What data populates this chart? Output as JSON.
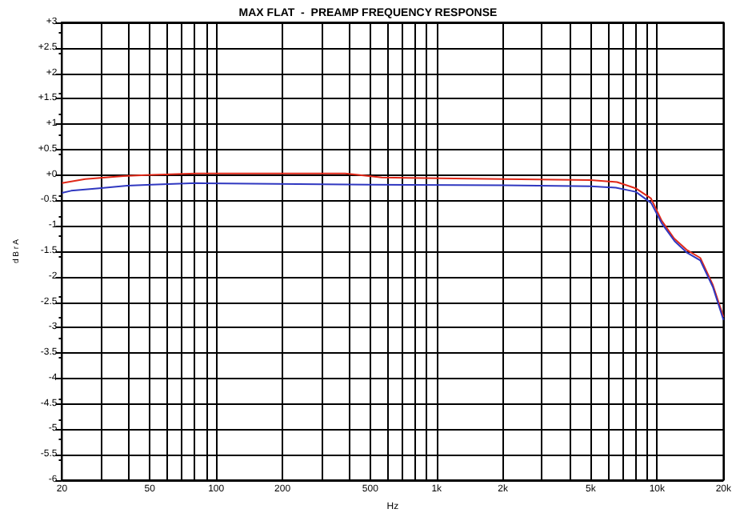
{
  "chart_data": {
    "type": "line",
    "title": "MAX FLAT  -  PREAMP FREQUENCY RESPONSE",
    "xlabel": "Hz",
    "ylabel": "d B r A",
    "log": "x",
    "grid": true,
    "marker": "none",
    "line_style": "solid",
    "xlim": [
      20,
      20000
    ],
    "ylim": [
      -6,
      3
    ],
    "xticks": [
      {
        "value": 20,
        "label": "20"
      },
      {
        "value": 30,
        "label": null
      },
      {
        "value": 40,
        "label": null
      },
      {
        "value": 50,
        "label": "50"
      },
      {
        "value": 60,
        "label": null
      },
      {
        "value": 70,
        "label": null
      },
      {
        "value": 80,
        "label": null
      },
      {
        "value": 90,
        "label": null
      },
      {
        "value": 100,
        "label": "100"
      },
      {
        "value": 200,
        "label": "200"
      },
      {
        "value": 300,
        "label": null
      },
      {
        "value": 400,
        "label": null
      },
      {
        "value": 500,
        "label": "500"
      },
      {
        "value": 600,
        "label": null
      },
      {
        "value": 700,
        "label": null
      },
      {
        "value": 800,
        "label": null
      },
      {
        "value": 900,
        "label": null
      },
      {
        "value": 1000,
        "label": "1k"
      },
      {
        "value": 2000,
        "label": "2k"
      },
      {
        "value": 3000,
        "label": null
      },
      {
        "value": 4000,
        "label": null
      },
      {
        "value": 5000,
        "label": "5k"
      },
      {
        "value": 6000,
        "label": null
      },
      {
        "value": 7000,
        "label": null
      },
      {
        "value": 8000,
        "label": null
      },
      {
        "value": 9000,
        "label": null
      },
      {
        "value": 10000,
        "label": "10k"
      },
      {
        "value": 20000,
        "label": "20k"
      }
    ],
    "yticks": [
      {
        "value": 3,
        "label": "+3"
      },
      {
        "value": 2.5,
        "label": "+2.5"
      },
      {
        "value": 2,
        "label": "+2"
      },
      {
        "value": 1.5,
        "label": "+1.5"
      },
      {
        "value": 1,
        "label": "+1"
      },
      {
        "value": 0.5,
        "label": "+0.5"
      },
      {
        "value": 0,
        "label": "+0"
      },
      {
        "value": -0.5,
        "label": "-0.5"
      },
      {
        "value": -1,
        "label": "-1"
      },
      {
        "value": -1.5,
        "label": "-1.5"
      },
      {
        "value": -2,
        "label": "-2"
      },
      {
        "value": -2.5,
        "label": "-2.5"
      },
      {
        "value": -3,
        "label": "-3"
      },
      {
        "value": -3.5,
        "label": "-3.5"
      },
      {
        "value": -4,
        "label": "-4"
      },
      {
        "value": -4.5,
        "label": "-4.5"
      },
      {
        "value": -5,
        "label": "-5"
      },
      {
        "value": -5.5,
        "label": "-5.5"
      },
      {
        "value": -6,
        "label": "-6"
      }
    ],
    "series": [
      {
        "color": "#e02818",
        "x": [
          20,
          25.5,
          38,
          48,
          81,
          385,
          564,
          2000,
          5000,
          6580,
          7990,
          9380,
          10500,
          11950,
          13600,
          15700,
          17900,
          20000
        ],
        "values": [
          -0.16,
          -0.08,
          -0.02,
          0,
          0.03,
          0.03,
          -0.05,
          -0.08,
          -0.1,
          -0.14,
          -0.26,
          -0.46,
          -0.9,
          -1.25,
          -1.47,
          -1.63,
          -2.16,
          -2.79
        ]
      },
      {
        "color": "#3038c0",
        "x": [
          20,
          22,
          29.5,
          39.5,
          51,
          81,
          495,
          2000,
          5000,
          6500,
          8000,
          9400,
          10500,
          12000,
          13600,
          15700,
          17900,
          20000
        ],
        "values": [
          -0.35,
          -0.31,
          -0.26,
          -0.21,
          -0.19,
          -0.16,
          -0.19,
          -0.2,
          -0.22,
          -0.25,
          -0.33,
          -0.55,
          -0.95,
          -1.3,
          -1.52,
          -1.68,
          -2.2,
          -2.85
        ]
      }
    ]
  }
}
